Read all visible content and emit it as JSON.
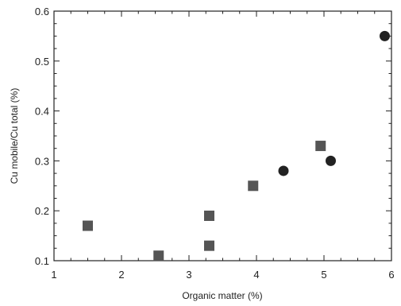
{
  "chart_data": {
    "type": "scatter",
    "title": "",
    "xlabel": "Organic matter (%)",
    "ylabel": "Cu mobile/Cu total (%)",
    "xlim": [
      1,
      6
    ],
    "ylim": [
      0.1,
      0.6
    ],
    "x_ticks": [
      1,
      2,
      3,
      4,
      5,
      6
    ],
    "y_ticks": [
      0.1,
      0.2,
      0.3,
      0.4,
      0.5,
      0.6
    ],
    "x_tick_labels": [
      "1",
      "2",
      "3",
      "4",
      "5",
      "6"
    ],
    "y_tick_labels": [
      "0.1",
      "0.2",
      "0.3",
      "0.4",
      "0.5",
      "0.6"
    ],
    "grid": false,
    "series": [
      {
        "marker": "square",
        "color": "#555555",
        "points": [
          {
            "x": 1.5,
            "y": 0.17
          },
          {
            "x": 2.55,
            "y": 0.11
          },
          {
            "x": 3.3,
            "y": 0.19
          },
          {
            "x": 3.3,
            "y": 0.13
          },
          {
            "x": 3.95,
            "y": 0.25
          },
          {
            "x": 4.95,
            "y": 0.33
          }
        ]
      },
      {
        "marker": "circle",
        "color": "#222222",
        "points": [
          {
            "x": 4.4,
            "y": 0.28
          },
          {
            "x": 5.1,
            "y": 0.3
          },
          {
            "x": 5.9,
            "y": 0.55
          }
        ]
      }
    ]
  }
}
